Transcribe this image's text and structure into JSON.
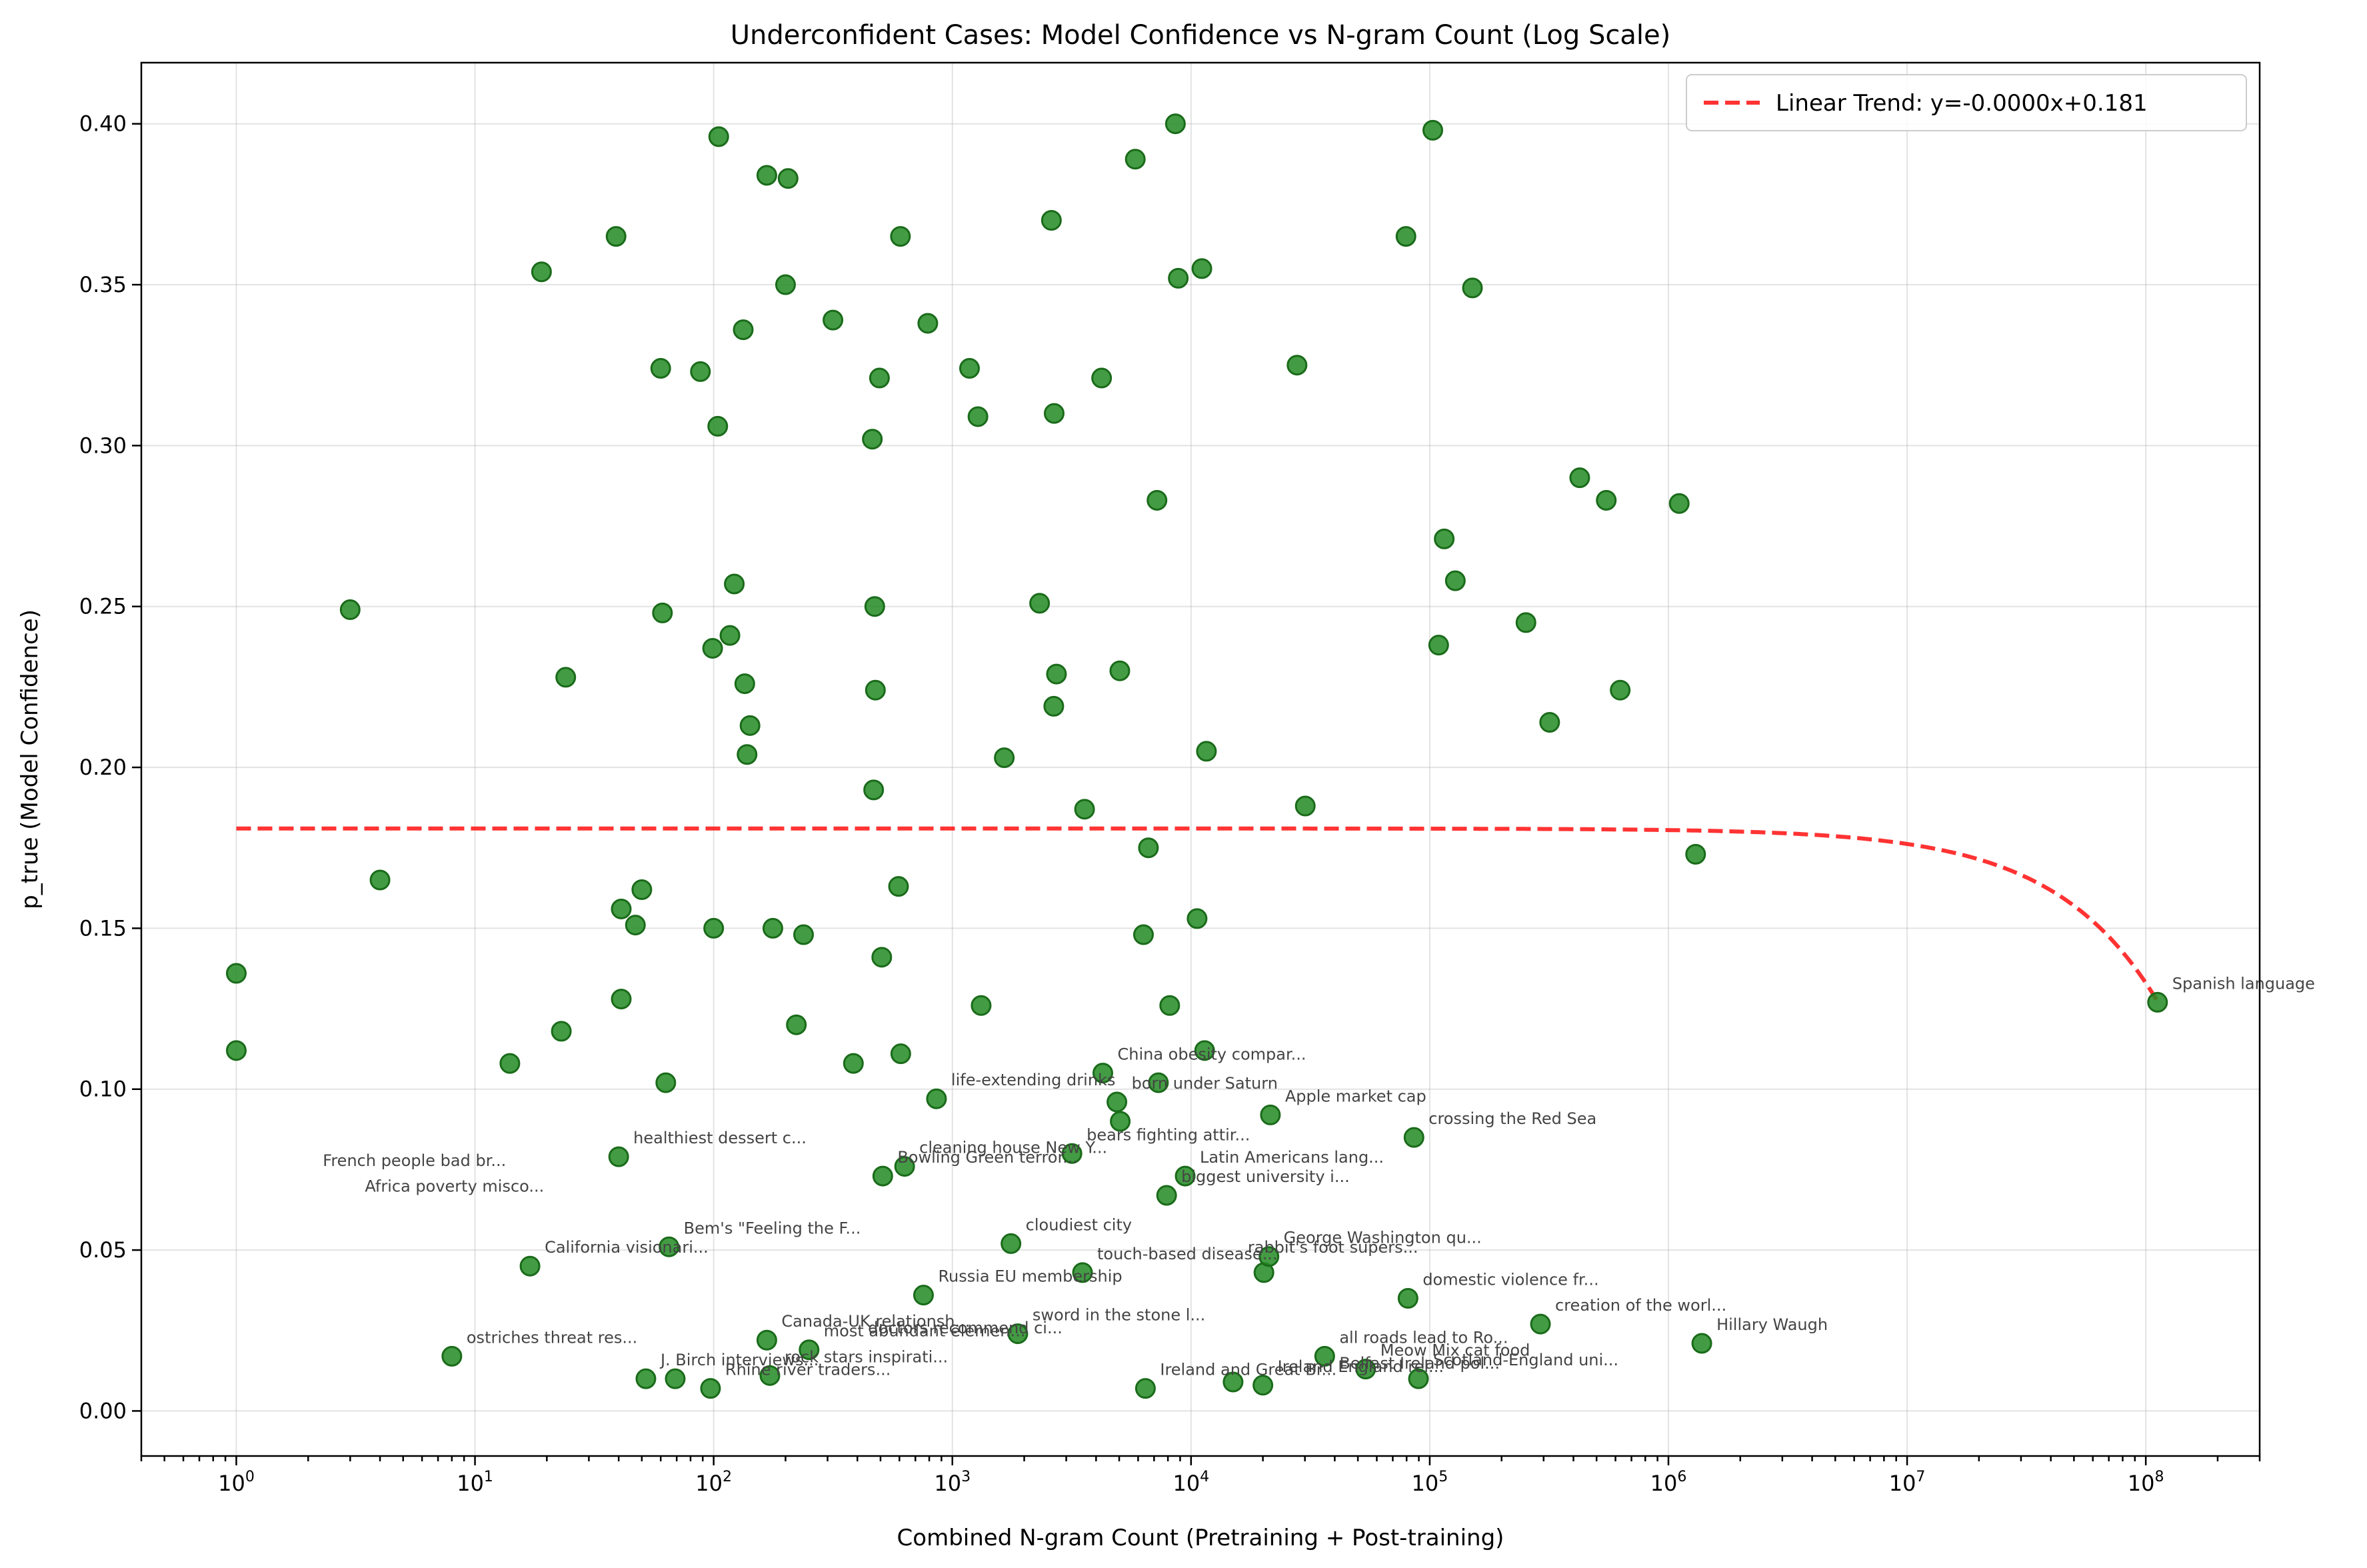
{
  "colors": {
    "point": "#228B22",
    "trend": "#ff0000",
    "annotation": "#444444"
  },
  "chart_data": {
    "type": "scatter",
    "title": "Underconfident Cases: Model Confidence vs N-gram Count (Log Scale)",
    "xlabel": "Combined N-gram Count (Pretraining + Post-training)",
    "ylabel": "p_true (Model Confidence)",
    "xscale": "log",
    "xlim": [
      0.4,
      300000000
    ],
    "ylim": [
      -0.014,
      0.419
    ],
    "xticks": [
      {
        "base": "10",
        "exp": "0",
        "value": 1
      },
      {
        "base": "10",
        "exp": "1",
        "value": 10
      },
      {
        "base": "10",
        "exp": "2",
        "value": 100
      },
      {
        "base": "10",
        "exp": "3",
        "value": 1000
      },
      {
        "base": "10",
        "exp": "4",
        "value": 10000
      },
      {
        "base": "10",
        "exp": "5",
        "value": 100000
      },
      {
        "base": "10",
        "exp": "6",
        "value": 1000000
      },
      {
        "base": "10",
        "exp": "7",
        "value": 10000000
      },
      {
        "base": "10",
        "exp": "8",
        "value": 100000000
      }
    ],
    "yticks": [
      "0.00",
      "0.05",
      "0.10",
      "0.15",
      "0.20",
      "0.25",
      "0.30",
      "0.35",
      "0.40"
    ],
    "grid": true,
    "legend": {
      "position": "top-right",
      "entries": [
        "Linear Trend: y=-0.0000x+0.181"
      ]
    },
    "trend": {
      "slope": -4.8e-10,
      "intercept": 0.181,
      "x_range": [
        1,
        112000000
      ]
    },
    "series": [
      {
        "points": [
          [
            1,
            0.136
          ],
          [
            1,
            0.112
          ],
          [
            3,
            0.249
          ],
          [
            4,
            0.165
          ],
          [
            8,
            0.017
          ],
          [
            14,
            0.108
          ],
          [
            17,
            0.045
          ],
          [
            19,
            0.354
          ],
          [
            23,
            0.118
          ],
          [
            24,
            0.228
          ],
          [
            39,
            0.365
          ],
          [
            40,
            0.079
          ],
          [
            41,
            0.156
          ],
          [
            41,
            0.128
          ],
          [
            47,
            0.151
          ],
          [
            50,
            0.162
          ],
          [
            52,
            0.01
          ],
          [
            60,
            0.324
          ],
          [
            61,
            0.248
          ],
          [
            63,
            0.102
          ],
          [
            65,
            0.051
          ],
          [
            69,
            0.01
          ],
          [
            88,
            0.323
          ],
          [
            97,
            0.007
          ],
          [
            99,
            0.237
          ],
          [
            100,
            0.15
          ],
          [
            104,
            0.306
          ],
          [
            105,
            0.396
          ],
          [
            117,
            0.241
          ],
          [
            122,
            0.257
          ],
          [
            133,
            0.336
          ],
          [
            135,
            0.226
          ],
          [
            138,
            0.204
          ],
          [
            142,
            0.213
          ],
          [
            167,
            0.384
          ],
          [
            167,
            0.022
          ],
          [
            172,
            0.011
          ],
          [
            177,
            0.15
          ],
          [
            200,
            0.35
          ],
          [
            205,
            0.383
          ],
          [
            222,
            0.12
          ],
          [
            238,
            0.148
          ],
          [
            251,
            0.019
          ],
          [
            316,
            0.339
          ],
          [
            385,
            0.108
          ],
          [
            462,
            0.302
          ],
          [
            468,
            0.193
          ],
          [
            473,
            0.25
          ],
          [
            476,
            0.224
          ],
          [
            495,
            0.321
          ],
          [
            506,
            0.141
          ],
          [
            511,
            0.073
          ],
          [
            595,
            0.163
          ],
          [
            606,
            0.365
          ],
          [
            608,
            0.111
          ],
          [
            631,
            0.076
          ],
          [
            757,
            0.036
          ],
          [
            789,
            0.338
          ],
          [
            858,
            0.097
          ],
          [
            1180,
            0.324
          ],
          [
            1280,
            0.309
          ],
          [
            1320,
            0.126
          ],
          [
            1650,
            0.203
          ],
          [
            1760,
            0.052
          ],
          [
            1880,
            0.024
          ],
          [
            2320,
            0.251
          ],
          [
            2600,
            0.37
          ],
          [
            2660,
            0.219
          ],
          [
            2670,
            0.31
          ],
          [
            2730,
            0.229
          ],
          [
            3170,
            0.08
          ],
          [
            3510,
            0.043
          ],
          [
            3580,
            0.187
          ],
          [
            4220,
            0.321
          ],
          [
            4270,
            0.105
          ],
          [
            4890,
            0.096
          ],
          [
            5030,
            0.23
          ],
          [
            5050,
            0.09
          ],
          [
            5840,
            0.389
          ],
          [
            6320,
            0.148
          ],
          [
            6440,
            0.007
          ],
          [
            6630,
            0.175
          ],
          [
            7200,
            0.283
          ],
          [
            7300,
            0.102
          ],
          [
            7900,
            0.067
          ],
          [
            8140,
            0.126
          ],
          [
            8600,
            0.4
          ],
          [
            8840,
            0.352
          ],
          [
            9450,
            0.073
          ],
          [
            10600,
            0.153
          ],
          [
            11100,
            0.355
          ],
          [
            11400,
            0.112
          ],
          [
            11600,
            0.205
          ],
          [
            15000,
            0.009
          ],
          [
            20000,
            0.008
          ],
          [
            20200,
            0.043
          ],
          [
            21200,
            0.048
          ],
          [
            21500,
            0.092
          ],
          [
            27800,
            0.325
          ],
          [
            30100,
            0.188
          ],
          [
            36300,
            0.017
          ],
          [
            53900,
            0.013
          ],
          [
            79500,
            0.365
          ],
          [
            81100,
            0.035
          ],
          [
            85900,
            0.085
          ],
          [
            89700,
            0.01
          ],
          [
            103000,
            0.398
          ],
          [
            109000,
            0.238
          ],
          [
            115000,
            0.271
          ],
          [
            128000,
            0.258
          ],
          [
            151000,
            0.349
          ],
          [
            253000,
            0.245
          ],
          [
            291000,
            0.027
          ],
          [
            318000,
            0.214
          ],
          [
            425000,
            0.29
          ],
          [
            549000,
            0.283
          ],
          [
            628000,
            0.224
          ],
          [
            1110000,
            0.282
          ],
          [
            1300000,
            0.173
          ],
          [
            1380000,
            0.021
          ],
          [
            112000000,
            0.127
          ]
        ]
      }
    ],
    "annotations": [
      {
        "text": "French people bad br...",
        "x": 2,
        "y": 0.072
      },
      {
        "text": "Africa poverty misco...",
        "x": 3,
        "y": 0.064
      },
      {
        "text": "ostriches threat res...",
        "x": 8,
        "y": 0.017
      },
      {
        "text": "California visionari...",
        "x": 17,
        "y": 0.045
      },
      {
        "text": "healthiest dessert c...",
        "x": 40,
        "y": 0.079
      },
      {
        "text": "Bem's \"Feeling the F...",
        "x": 65,
        "y": 0.051
      },
      {
        "text": "J. Birch interviews...",
        "x": 52,
        "y": 0.01
      },
      {
        "text": "Rhine river traders...",
        "x": 97,
        "y": 0.007
      },
      {
        "text": "Canada-UK relationsh...",
        "x": 167,
        "y": 0.022
      },
      {
        "text": "rock stars inspirati...",
        "x": 172,
        "y": 0.011
      },
      {
        "text": "most abundant elemen...",
        "x": 251,
        "y": 0.019
      },
      {
        "text": "doctors recommend ci...",
        "x": 385,
        "y": 0.02
      },
      {
        "text": "Bowling Green terror...",
        "x": 511,
        "y": 0.073
      },
      {
        "text": "cleaning house New Y...",
        "x": 631,
        "y": 0.076
      },
      {
        "text": "Russia EU membership",
        "x": 757,
        "y": 0.036
      },
      {
        "text": "life-extending drinks",
        "x": 858,
        "y": 0.097
      },
      {
        "text": "cloudiest city",
        "x": 1760,
        "y": 0.052
      },
      {
        "text": "sword in the stone l...",
        "x": 1880,
        "y": 0.024
      },
      {
        "text": "bears fighting attir...",
        "x": 3170,
        "y": 0.08
      },
      {
        "text": "touch-based disease...",
        "x": 3510,
        "y": 0.043
      },
      {
        "text": "China obesity compar...",
        "x": 4270,
        "y": 0.105
      },
      {
        "text": "born under Saturn",
        "x": 4890,
        "y": 0.096
      },
      {
        "text": "Ireland and Great Br...",
        "x": 6440,
        "y": 0.007
      },
      {
        "text": "biggest university i...",
        "x": 7900,
        "y": 0.067
      },
      {
        "text": "Latin Americans lang...",
        "x": 9450,
        "y": 0.073
      },
      {
        "text": "rabbit's foot supers...",
        "x": 15000,
        "y": 0.045
      },
      {
        "text": "Apple market cap",
        "x": 21500,
        "y": 0.092
      },
      {
        "text": "George Washington qu...",
        "x": 21200,
        "y": 0.048
      },
      {
        "text": "Ireland England rel...",
        "x": 20000,
        "y": 0.008
      },
      {
        "text": "Belfast Ireland pol...",
        "x": 36300,
        "y": 0.009
      },
      {
        "text": "all roads lead to Ro...",
        "x": 36300,
        "y": 0.017
      },
      {
        "text": "Meow Mix cat food",
        "x": 53900,
        "y": 0.013
      },
      {
        "text": "Scotland-England uni...",
        "x": 89700,
        "y": 0.01
      },
      {
        "text": "domestic violence fr...",
        "x": 81100,
        "y": 0.035
      },
      {
        "text": "crossing the Red Sea",
        "x": 85900,
        "y": 0.085
      },
      {
        "text": "creation of the worl...",
        "x": 291000,
        "y": 0.027
      },
      {
        "text": "Hillary Waugh",
        "x": 1380000,
        "y": 0.021
      },
      {
        "text": "Spanish language",
        "x": 112000000,
        "y": 0.127
      }
    ]
  }
}
